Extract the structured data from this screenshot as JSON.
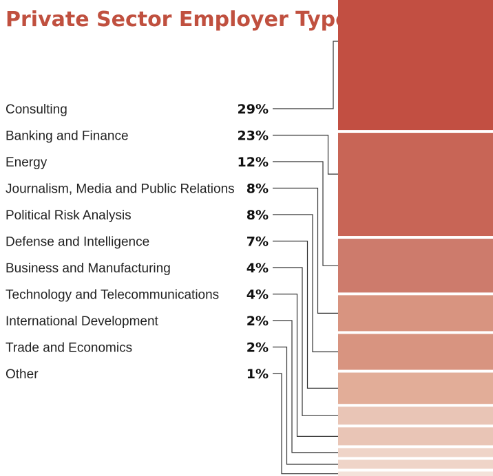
{
  "chart_data": {
    "type": "bar",
    "title": "Private Sector Employer Types",
    "categories": [
      "Consulting",
      "Banking and Finance",
      "Energy",
      "Journalism, Media and Public Relations",
      "Political Risk Analysis",
      "Defense and Intelligence",
      "Business and Manufacturing",
      "Technology and Telecommunications",
      "International Development",
      "Trade and Economics",
      "Other"
    ],
    "values": [
      29,
      23,
      12,
      8,
      8,
      7,
      4,
      4,
      2,
      2,
      1
    ],
    "value_labels": [
      "29%",
      "23%",
      "12%",
      "8%",
      "8%",
      "7%",
      "4%",
      "4%",
      "2%",
      "2%",
      "1%"
    ],
    "unit": "%",
    "layout": "stacked-column",
    "colors": [
      "#c24f42",
      "#c86556",
      "#cd7b6c",
      "#d89480",
      "#d89480",
      "#e2ad98",
      "#e9c5b6",
      "#e9c5b6",
      "#efd4c8",
      "#efd4c8",
      "#f4e2da"
    ]
  }
}
